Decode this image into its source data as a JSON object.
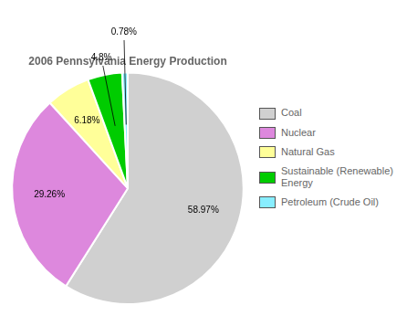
{
  "chart_data": {
    "type": "pie",
    "title": "2006 Pennsylvania Energy Production",
    "categories": [
      "Coal",
      "Nuclear",
      "Natural Gas",
      "Sustainable (Renewable)\nEnergy",
      "Petroleum (Crude Oil)"
    ],
    "values": [
      58.97,
      29.26,
      6.18,
      4.8,
      0.78
    ],
    "value_labels": [
      "58.97%",
      "29.26%",
      "6.18%",
      "4.8%",
      "0.78%"
    ],
    "colors": [
      "#d0d0d0",
      "#dd88dd",
      "#ffff99",
      "#00cc00",
      "#88eeff"
    ],
    "legend": "right",
    "data_labels": true
  }
}
